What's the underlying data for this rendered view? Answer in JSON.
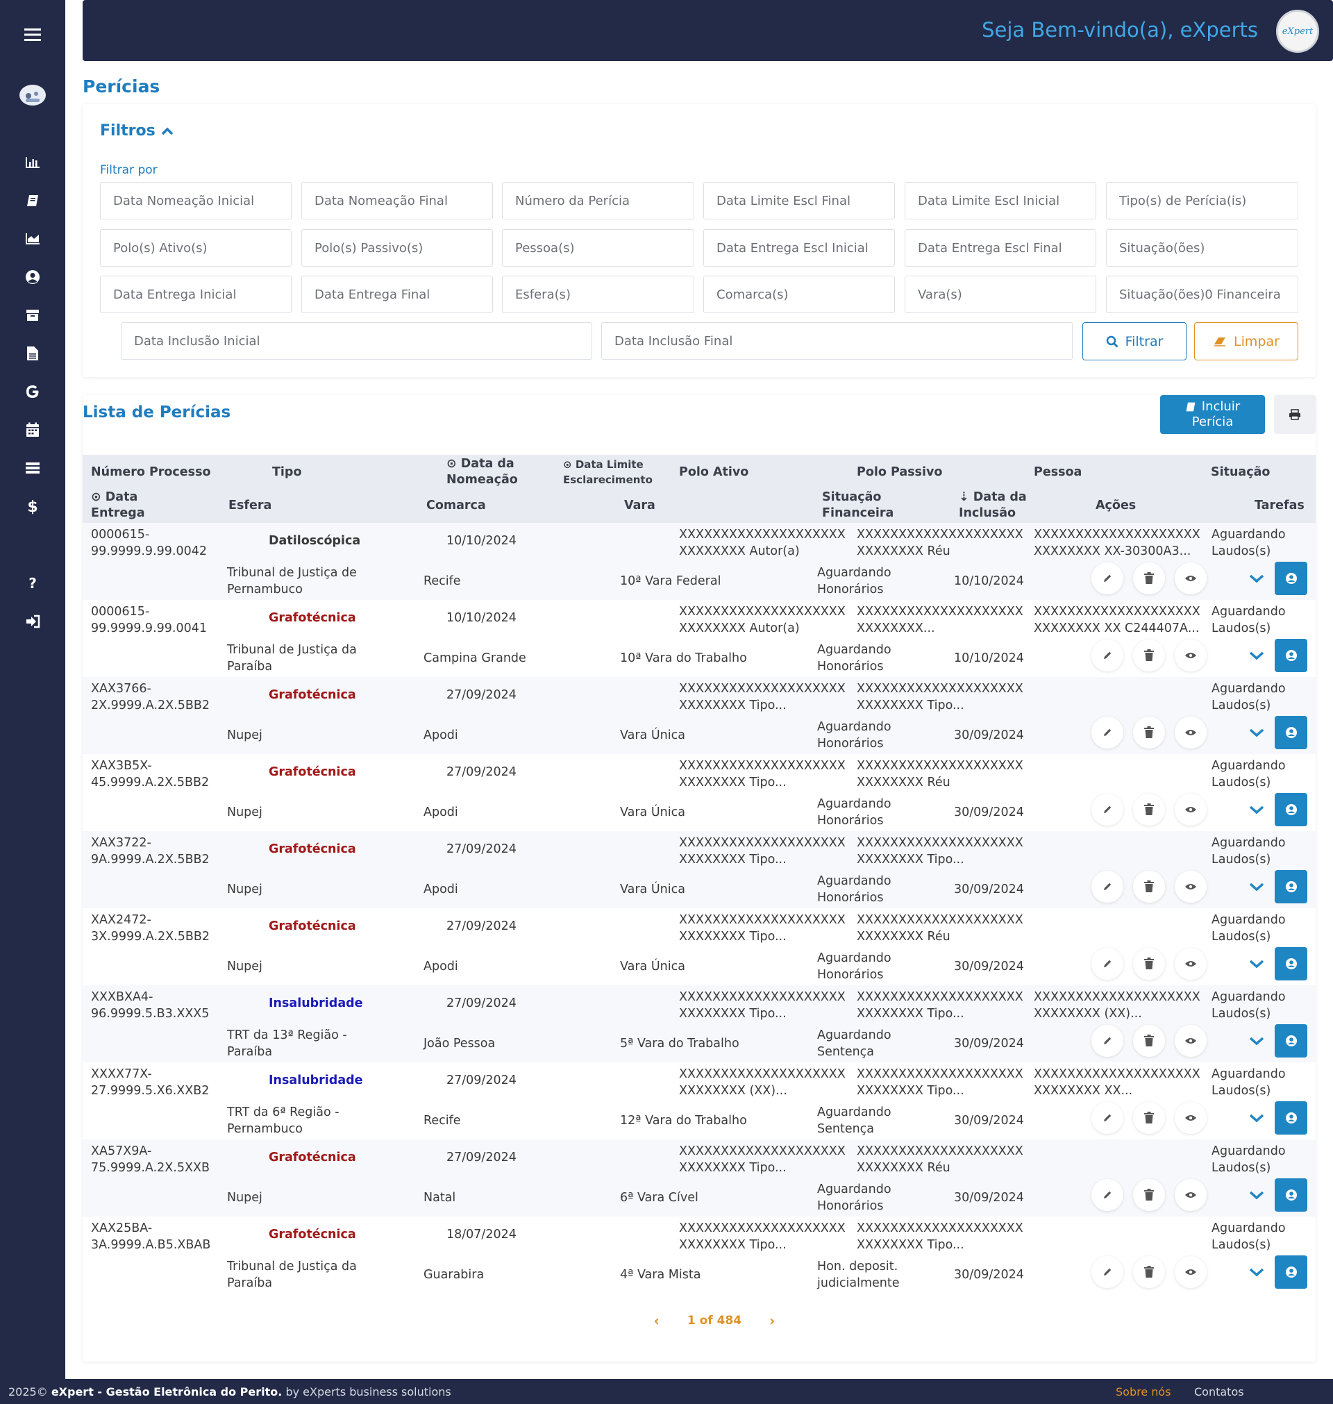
{
  "header": {
    "welcome": "Seja Bem-vindo(a), eXperts",
    "logo_text": "eXpert"
  },
  "page": {
    "title": "Perícias"
  },
  "filters": {
    "title": "Filtros",
    "filtrar_por": "Filtrar por",
    "fields": [
      "Data Nomeação Inicial",
      "Data Nomeação Final",
      "Número da Perícia",
      "Data Limite Escl Final",
      "Data Limite Escl Inicial",
      "Tipo(s) de Perícia(is)",
      "Polo(s) Ativo(s)",
      "Polo(s) Passivo(s)",
      "Pessoa(s)",
      "Data Entrega Escl Inicial",
      "Data Entrega Escl Final",
      "Situação(ões)",
      "Data Entrega Inicial",
      "Data Entrega Final",
      "Esfera(s)",
      "Comarca(s)",
      "Vara(s)",
      "Situação(ões)0 Financeira",
      "Data Inclusão Inicial",
      "Data Inclusão Final"
    ],
    "btn_filtrar": "Filtrar",
    "btn_limpar": "Limpar"
  },
  "list": {
    "title": "Lista de Perícias",
    "btn_incluir_1": "Incluir",
    "btn_incluir_2": "Perícia",
    "headers": {
      "numero": "Número Processo",
      "tipo": "Tipo",
      "data_nomeacao_1": "Data da",
      "data_nomeacao_2": "Nomeação",
      "data_limite_1": "Data Limite",
      "data_limite_2": "Esclarecimento",
      "polo_ativo": "Polo Ativo",
      "polo_passivo": "Polo Passivo",
      "pessoa": "Pessoa",
      "situacao": "Situação",
      "data_entrega_1": "Data",
      "data_entrega_2": "Entrega",
      "esfera": "Esfera",
      "comarca": "Comarca",
      "vara": "Vara",
      "sit_fin_1": "Situação",
      "sit_fin_2": "Financeira",
      "data_inclusao_1": "Data da",
      "data_inclusao_2": "Inclusão",
      "acoes": "Ações",
      "tarefas": "Tarefas"
    },
    "rows": [
      {
        "num1": "0000615-",
        "num2": "99.9999.9.99.0042",
        "tipo": "Datiloscópica",
        "tipo_color": "#3a3a3a",
        "nomeacao": "10/10/2024",
        "ativo1": "XXXXXXXXXXXXXXXXXXXX",
        "ativo2": "XXXXXXXX  Autor(a)",
        "passivo1": "XXXXXXXXXXXXXXXXXXXX",
        "passivo2": "XXXXXXXX  Réu",
        "pessoa1": "XXXXXXXXXXXXXXXXXXXX",
        "pessoa2": "XXXXXXXX XX-30300A3...",
        "sit1": "Aguardando",
        "sit2": "Laudos(s)",
        "esfera1": "Tribunal de Justiça de",
        "esfera2": "Pernambuco",
        "comarca": "Recife",
        "vara": "10ª Vara Federal",
        "fin1": "Aguardando",
        "fin2": "Honorários",
        "inclusao": "10/10/2024"
      },
      {
        "num1": "0000615-",
        "num2": "99.9999.9.99.0041",
        "tipo": "Grafotécnica",
        "tipo_color": "#a01818",
        "nomeacao": "10/10/2024",
        "ativo1": "XXXXXXXXXXXXXXXXXXXX",
        "ativo2": "XXXXXXXX  Autor(a)",
        "passivo1": "XXXXXXXXXXXXXXXXXXXX",
        "passivo2": "XXXXXXXX...",
        "pessoa1": "XXXXXXXXXXXXXXXXXXXX",
        "pessoa2": "XXXXXXXX XX C244407A...",
        "sit1": "Aguardando",
        "sit2": "Laudos(s)",
        "esfera1": "Tribunal de Justiça da",
        "esfera2": "Paraíba",
        "comarca": "Campina Grande",
        "vara": "10ª Vara do Trabalho",
        "fin1": "Aguardando",
        "fin2": "Honorários",
        "inclusao": "10/10/2024"
      },
      {
        "num1": "XAX3766-",
        "num2": "2X.9999.A.2X.5BB2",
        "tipo": "Grafotécnica",
        "tipo_color": "#a01818",
        "nomeacao": "27/09/2024",
        "ativo1": "XXXXXXXXXXXXXXXXXXXX",
        "ativo2": "XXXXXXXX  Tipo...",
        "passivo1": "XXXXXXXXXXXXXXXXXXXX",
        "passivo2": "XXXXXXXX  Tipo...",
        "pessoa1": "",
        "pessoa2": "",
        "sit1": "Aguardando",
        "sit2": "Laudos(s)",
        "esfera1": "Nupej",
        "esfera2": "",
        "comarca": "Apodi",
        "vara": "Vara Única",
        "fin1": "Aguardando",
        "fin2": "Honorários",
        "inclusao": "30/09/2024"
      },
      {
        "num1": "XAX3B5X-",
        "num2": "45.9999.A.2X.5BB2",
        "tipo": "Grafotécnica",
        "tipo_color": "#a01818",
        "nomeacao": "27/09/2024",
        "ativo1": "XXXXXXXXXXXXXXXXXXXX",
        "ativo2": "XXXXXXXX  Tipo...",
        "passivo1": "XXXXXXXXXXXXXXXXXXXX",
        "passivo2": "XXXXXXXX  Réu",
        "pessoa1": "",
        "pessoa2": "",
        "sit1": "Aguardando",
        "sit2": "Laudos(s)",
        "esfera1": "Nupej",
        "esfera2": "",
        "comarca": "Apodi",
        "vara": "Vara Única",
        "fin1": "Aguardando",
        "fin2": "Honorários",
        "inclusao": "30/09/2024"
      },
      {
        "num1": "XAX3722-",
        "num2": "9A.9999.A.2X.5BB2",
        "tipo": "Grafotécnica",
        "tipo_color": "#a01818",
        "nomeacao": "27/09/2024",
        "ativo1": "XXXXXXXXXXXXXXXXXXXX",
        "ativo2": "XXXXXXXX  Tipo...",
        "passivo1": "XXXXXXXXXXXXXXXXXXXX",
        "passivo2": "XXXXXXXX  Tipo...",
        "pessoa1": "",
        "pessoa2": "",
        "sit1": "Aguardando",
        "sit2": "Laudos(s)",
        "esfera1": "Nupej",
        "esfera2": "",
        "comarca": "Apodi",
        "vara": "Vara Única",
        "fin1": "Aguardando",
        "fin2": "Honorários",
        "inclusao": "30/09/2024"
      },
      {
        "num1": "XAX2472-",
        "num2": "3X.9999.A.2X.5BB2",
        "tipo": "Grafotécnica",
        "tipo_color": "#a01818",
        "nomeacao": "27/09/2024",
        "ativo1": "XXXXXXXXXXXXXXXXXXXX",
        "ativo2": "XXXXXXXX  Tipo...",
        "passivo1": "XXXXXXXXXXXXXXXXXXXX",
        "passivo2": "XXXXXXXX  Réu",
        "pessoa1": "",
        "pessoa2": "",
        "sit1": "Aguardando",
        "sit2": "Laudos(s)",
        "esfera1": "Nupej",
        "esfera2": "",
        "comarca": "Apodi",
        "vara": "Vara Única",
        "fin1": "Aguardando",
        "fin2": "Honorários",
        "inclusao": "30/09/2024"
      },
      {
        "num1": "XXXBXA4-",
        "num2": "96.9999.5.B3.XXX5",
        "tipo": "Insalubridade",
        "tipo_color": "#1a1ab8",
        "nomeacao": "27/09/2024",
        "ativo1": "XXXXXXXXXXXXXXXXXXXX",
        "ativo2": "XXXXXXXX  Tipo...",
        "passivo1": "XXXXXXXXXXXXXXXXXXXX",
        "passivo2": "XXXXXXXX  Tipo...",
        "pessoa1": "XXXXXXXXXXXXXXXXXXXX",
        "pessoa2": "XXXXXXXX (XX)...",
        "sit1": "Aguardando",
        "sit2": "Laudos(s)",
        "esfera1": "TRT da 13ª Região -",
        "esfera2": "Paraíba",
        "comarca": "João Pessoa",
        "vara": "5ª Vara do Trabalho",
        "fin1": "Aguardando",
        "fin2": "Sentença",
        "inclusao": "30/09/2024"
      },
      {
        "num1": "XXXX77X-",
        "num2": "27.9999.5.X6.XXB2",
        "tipo": "Insalubridade",
        "tipo_color": "#1a1ab8",
        "nomeacao": "27/09/2024",
        "ativo1": "XXXXXXXXXXXXXXXXXXXX",
        "ativo2": "XXXXXXXX (XX)...",
        "passivo1": "XXXXXXXXXXXXXXXXXXXX",
        "passivo2": "XXXXXXXX  Tipo...",
        "pessoa1": "XXXXXXXXXXXXXXXXXXXX",
        "pessoa2": "XXXXXXXX XX...",
        "sit1": "Aguardando",
        "sit2": "Laudos(s)",
        "esfera1": "TRT da 6ª Região -",
        "esfera2": "Pernambuco",
        "comarca": "Recife",
        "vara": "12ª Vara do Trabalho",
        "fin1": "Aguardando",
        "fin2": "Sentença",
        "inclusao": "30/09/2024"
      },
      {
        "num1": "XA57X9A-",
        "num2": "75.9999.A.2X.5XXB",
        "tipo": "Grafotécnica",
        "tipo_color": "#a01818",
        "nomeacao": "27/09/2024",
        "ativo1": "XXXXXXXXXXXXXXXXXXXX",
        "ativo2": "XXXXXXXX  Tipo...",
        "passivo1": "XXXXXXXXXXXXXXXXXXXX",
        "passivo2": "XXXXXXXX  Réu",
        "pessoa1": "",
        "pessoa2": "",
        "sit1": "Aguardando",
        "sit2": "Laudos(s)",
        "esfera1": "Nupej",
        "esfera2": "",
        "comarca": "Natal",
        "vara": "6ª Vara Cível",
        "fin1": "Aguardando",
        "fin2": "Honorários",
        "inclusao": "30/09/2024"
      },
      {
        "num1": "XAX25BA-",
        "num2": "3A.9999.A.B5.XBAB",
        "tipo": "Grafotécnica",
        "tipo_color": "#a01818",
        "nomeacao": "18/07/2024",
        "ativo1": "XXXXXXXXXXXXXXXXXXXX",
        "ativo2": "XXXXXXXX  Tipo...",
        "passivo1": "XXXXXXXXXXXXXXXXXXXX",
        "passivo2": "XXXXXXXX  Tipo...",
        "pessoa1": "",
        "pessoa2": "",
        "sit1": "Aguardando",
        "sit2": "Laudos(s)",
        "esfera1": "Tribunal de Justiça da",
        "esfera2": "Paraíba",
        "comarca": "Guarabira",
        "vara": "4ª Vara Mista",
        "fin1": "Hon. deposit.",
        "fin2": "judicialmente",
        "inclusao": "30/09/2024"
      }
    ],
    "pager": "1 of 484"
  },
  "footer": {
    "copyright": "2025© ",
    "app_name": "eXpert - Gestão Eletrônica do Perito.",
    "by": " by eXperts business solutions",
    "sobre": "Sobre nós",
    "contatos": "Contatos"
  },
  "colors": {
    "sidebar": "#222a47",
    "accent": "#1f86c4",
    "warning": "#e09126"
  },
  "icons": {
    "sidebar": [
      "menu-icon",
      "avatar-icon",
      "chart-bar-icon",
      "book-icon",
      "chart-area-icon",
      "user-circle-icon",
      "archive-icon",
      "file-icon",
      "google-icon",
      "calendar-icon",
      "list-icon",
      "dollar-icon",
      "help-icon",
      "logout-icon"
    ]
  }
}
